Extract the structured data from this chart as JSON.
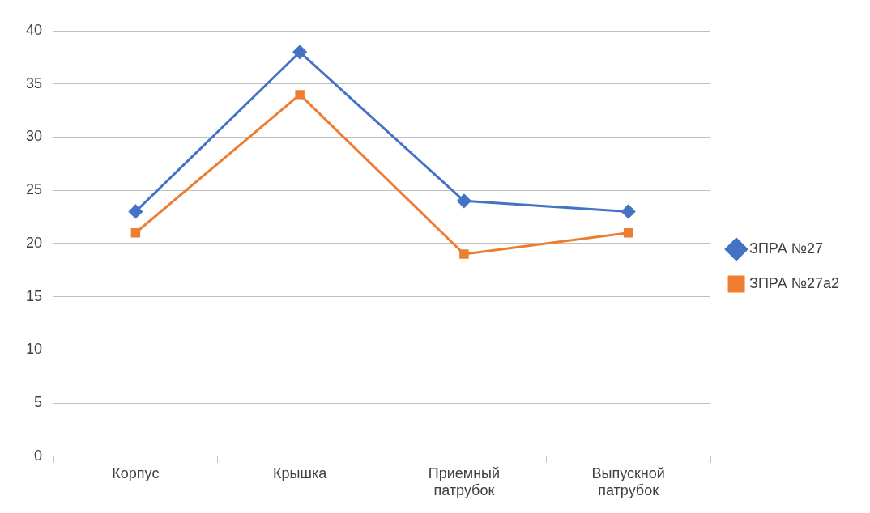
{
  "chart_data": {
    "type": "line",
    "categories": [
      "Корпус",
      "Крышка",
      "Приемный патрубок",
      "Выпускной патрубок"
    ],
    "series": [
      {
        "name": "ЗПРА №27",
        "color": "#4472c4",
        "marker": "diamond",
        "values": [
          23,
          38,
          24,
          23
        ]
      },
      {
        "name": "ЗПРА №27а2",
        "color": "#ed7d31",
        "marker": "square",
        "values": [
          21,
          34,
          19,
          21
        ]
      }
    ],
    "ylim": [
      0,
      40
    ],
    "yticks": [
      0,
      5,
      10,
      15,
      20,
      25,
      30,
      35,
      40
    ],
    "grid": "y",
    "legend": "right",
    "line_style": "solid"
  }
}
